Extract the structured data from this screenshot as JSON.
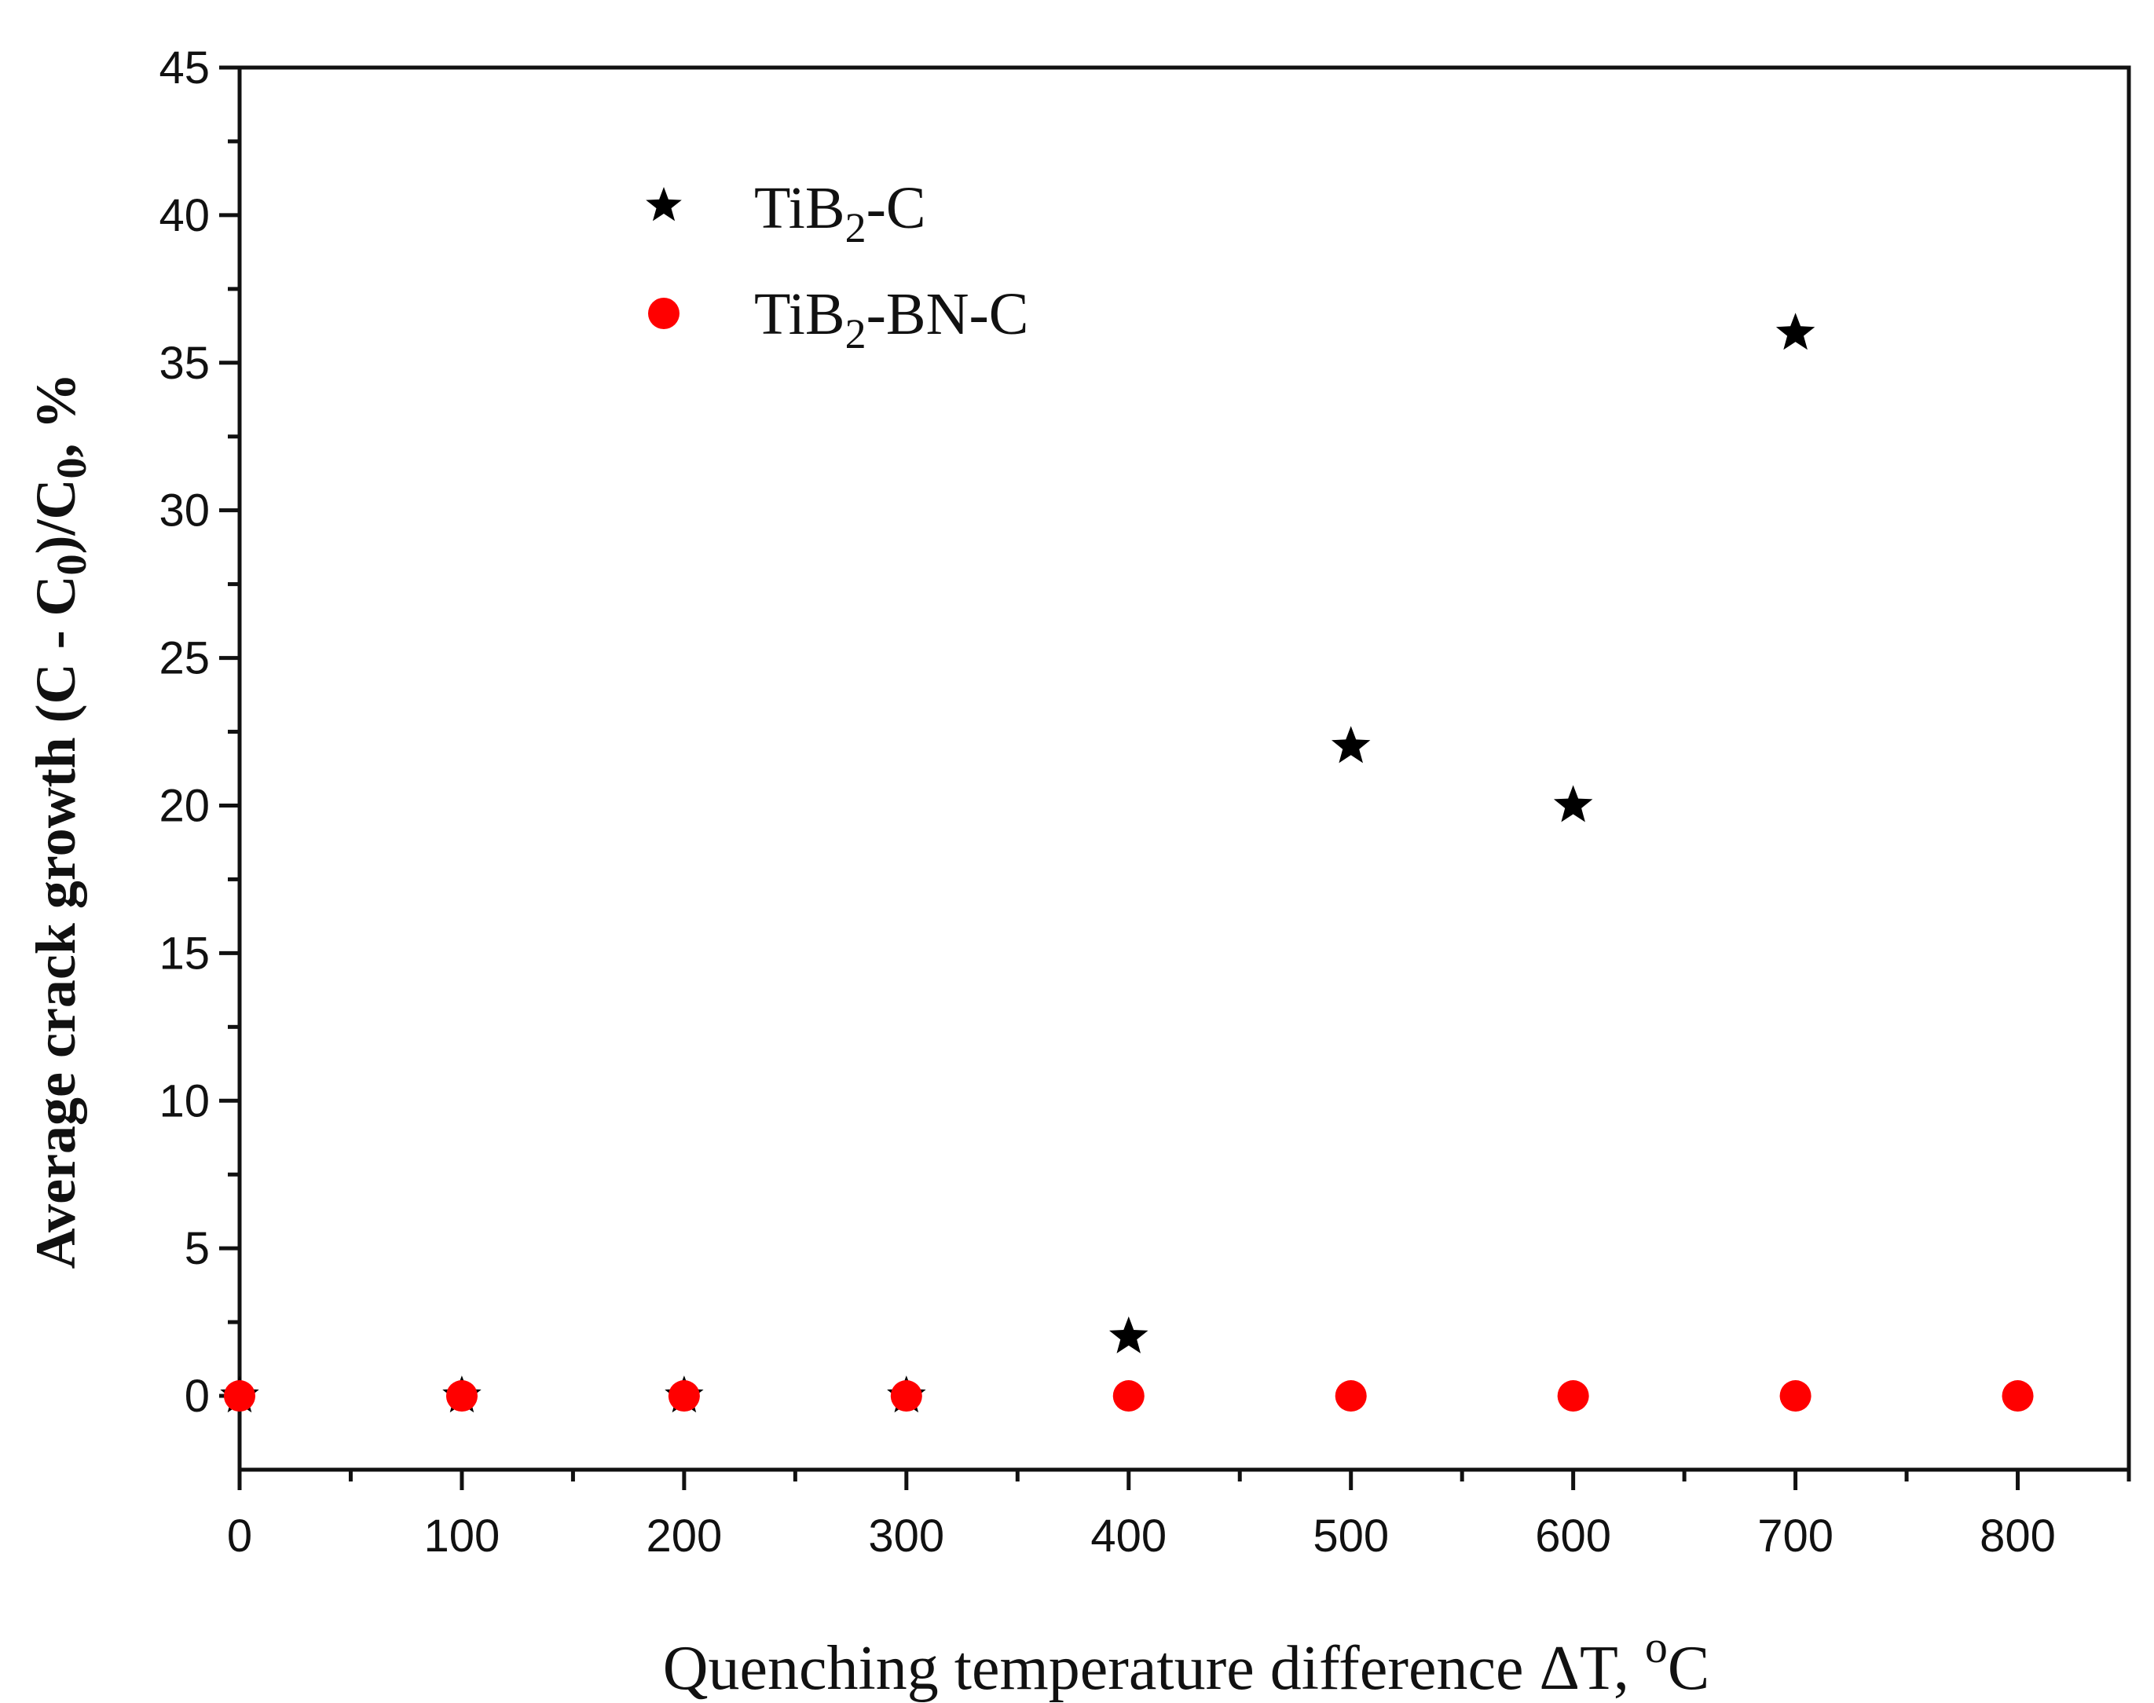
{
  "chart_data": {
    "type": "scatter",
    "title": "",
    "xlabel_text": "Quenching temperature difference ΔT, ",
    "xlabel_unit_sup": "o",
    "xlabel_unit": "C",
    "ylabel": {
      "p1": "Average crack growth (C - C",
      "sub1": "0",
      "p2": ")/C",
      "sub2": "0",
      "p3": ", %"
    },
    "xlim": [
      0,
      850
    ],
    "ylim": [
      -2.5,
      45
    ],
    "x_ticks": [
      0,
      100,
      200,
      300,
      400,
      500,
      600,
      700,
      800
    ],
    "x_tick_labels": [
      "0",
      "100",
      "200",
      "300",
      "400",
      "500",
      "600",
      "700",
      "800"
    ],
    "y_ticks": [
      0,
      5,
      10,
      15,
      20,
      25,
      30,
      35,
      40,
      45
    ],
    "y_tick_labels": [
      "0",
      "5",
      "10",
      "15",
      "20",
      "25",
      "30",
      "35",
      "40",
      "45"
    ],
    "grid": false,
    "legend_position": "top-left",
    "series": [
      {
        "name": "TiB2-C",
        "legend": {
          "main": "TiB",
          "sub": "2",
          "tail": "-C"
        },
        "marker": "star",
        "color": "#000000",
        "x": [
          0,
          100,
          200,
          300,
          400,
          500,
          600,
          700
        ],
        "y": [
          0,
          0,
          0,
          0,
          2,
          22,
          20,
          36
        ]
      },
      {
        "name": "TiB2-BN-C",
        "legend": {
          "main": "TiB",
          "sub": "2",
          "tail": "-BN-C"
        },
        "marker": "circle",
        "color": "#ff0000",
        "x": [
          0,
          100,
          200,
          300,
          400,
          500,
          600,
          700,
          800
        ],
        "y": [
          0,
          0,
          0,
          0,
          0,
          0,
          0,
          0,
          0
        ]
      }
    ]
  }
}
